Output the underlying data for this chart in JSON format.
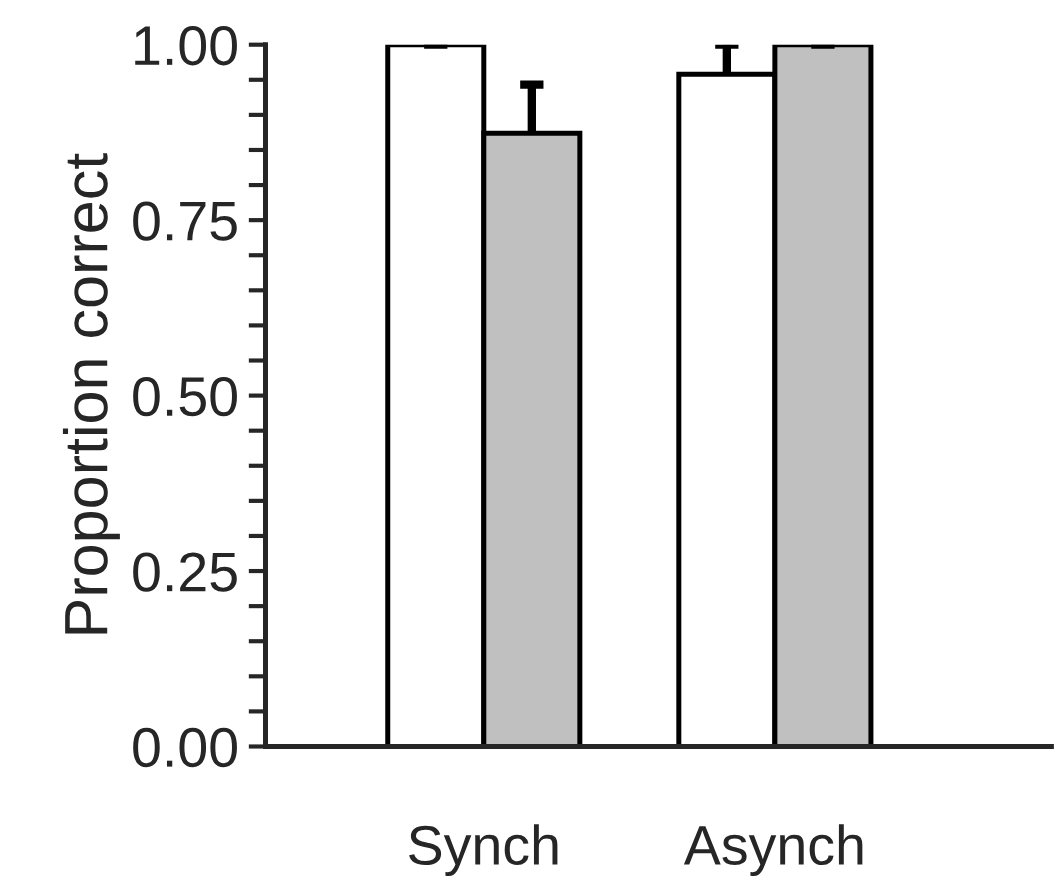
{
  "chart_data": {
    "type": "bar",
    "ylabel": "Proportion correct",
    "categories": [
      "Synch",
      "Asynch"
    ],
    "series": [
      {
        "color": "#ffffff",
        "values": [
          1.0,
          0.958
        ],
        "errors": [
          [
            1.0,
            1.0
          ],
          [
            0.958,
            1.0
          ]
        ]
      },
      {
        "color": "#c0c0c0",
        "values": [
          0.874,
          1.0
        ],
        "errors": [
          [
            0.874,
            0.943
          ],
          [
            1.0,
            1.0
          ]
        ]
      }
    ],
    "ylim": [
      0,
      1.0
    ],
    "yticks": [
      {
        "value": 0,
        "label": "0.00"
      },
      {
        "value": 0.05,
        "label": null
      },
      {
        "value": 0.1,
        "label": null
      },
      {
        "value": 0.15,
        "label": null
      },
      {
        "value": 0.2,
        "label": null
      },
      {
        "value": 0.25,
        "label": "0.25"
      },
      {
        "value": 0.3,
        "label": null
      },
      {
        "value": 0.35,
        "label": null
      },
      {
        "value": 0.4,
        "label": null
      },
      {
        "value": 0.45,
        "label": null
      },
      {
        "value": 0.5,
        "label": "0.50"
      },
      {
        "value": 0.55,
        "label": null
      },
      {
        "value": 0.6,
        "label": null
      },
      {
        "value": 0.65,
        "label": null
      },
      {
        "value": 0.7,
        "label": null
      },
      {
        "value": 0.75,
        "label": "0.75"
      },
      {
        "value": 0.8,
        "label": null
      },
      {
        "value": 0.85,
        "label": null
      },
      {
        "value": 0.9,
        "label": null
      },
      {
        "value": 0.95,
        "label": null
      },
      {
        "value": 1.0,
        "label": "1.00"
      }
    ],
    "grid": false,
    "legend": false
  }
}
